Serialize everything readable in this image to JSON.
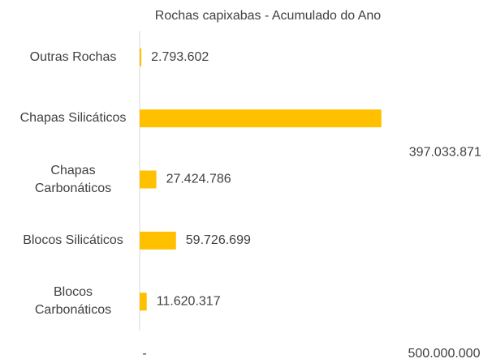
{
  "chart_data": {
    "type": "bar",
    "orientation": "horizontal",
    "title": "Rochas capixabas - Acumulado do Ano",
    "categories": [
      "Outras Rochas",
      "Chapas Silicáticos",
      "Chapas Carbonáticos",
      "Blocos Silicáticos",
      "Blocos Carbonáticos"
    ],
    "values": [
      2793602,
      397033871,
      27424786,
      59726699,
      11620317
    ],
    "value_labels": [
      "2.793.602",
      "397.033.871",
      "27.424.786",
      "59.726.699",
      "11.620.317"
    ],
    "color": "#ffc000",
    "xlim": [
      0,
      500000000
    ],
    "xticks": [
      {
        "value": 0,
        "label": "-"
      },
      {
        "value": 500000000,
        "label": "500.000.000"
      }
    ]
  }
}
